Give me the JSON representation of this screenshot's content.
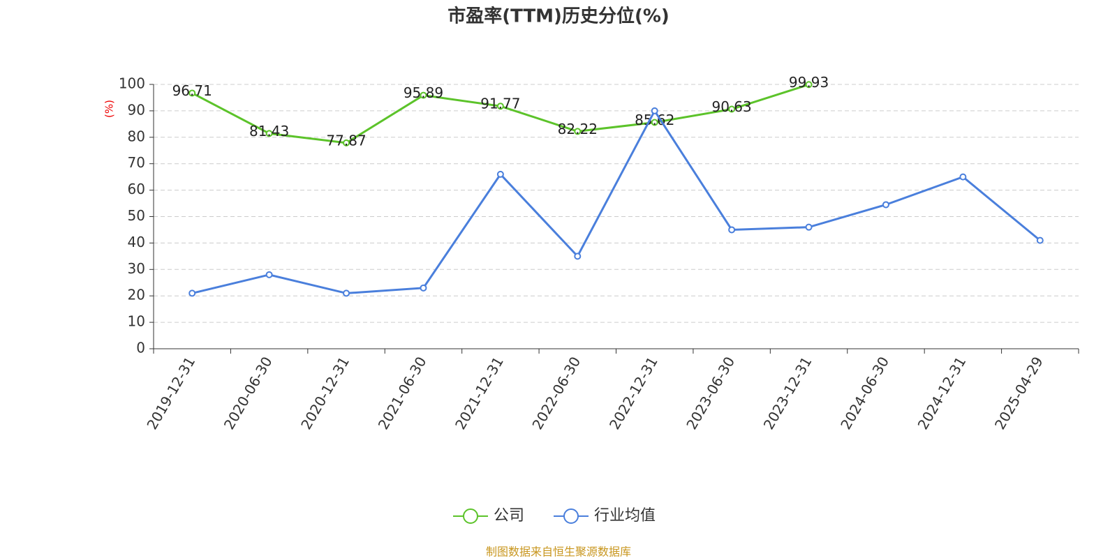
{
  "chart_data": {
    "type": "line",
    "title": "市盈率(TTM)历史分位(%)",
    "y_label": "(%)",
    "categories": [
      "2019-12-31",
      "2020-06-30",
      "2020-12-31",
      "2021-06-30",
      "2021-12-31",
      "2022-06-30",
      "2022-12-31",
      "2023-06-30",
      "2023-12-31",
      "2024-06-30",
      "2024-12-31",
      "2025-04-29"
    ],
    "series": [
      {
        "name": "公司",
        "color": "#5cc32a",
        "values": [
          96.71,
          81.43,
          77.87,
          95.89,
          91.77,
          82.22,
          85.62,
          90.63,
          99.93,
          null,
          null,
          null
        ],
        "show_labels": true
      },
      {
        "name": "行业均值",
        "color": "#4a7fdc",
        "values": [
          21,
          28,
          21,
          23,
          66,
          35,
          90,
          45,
          46,
          54.5,
          65,
          41
        ]
      }
    ],
    "ylim": [
      0,
      100
    ],
    "yticks": [
      0,
      10,
      20,
      30,
      40,
      50,
      60,
      70,
      80,
      90,
      100
    ],
    "grid": true,
    "legend": "bottom",
    "source": "制图数据来自恒生聚源数据库"
  }
}
